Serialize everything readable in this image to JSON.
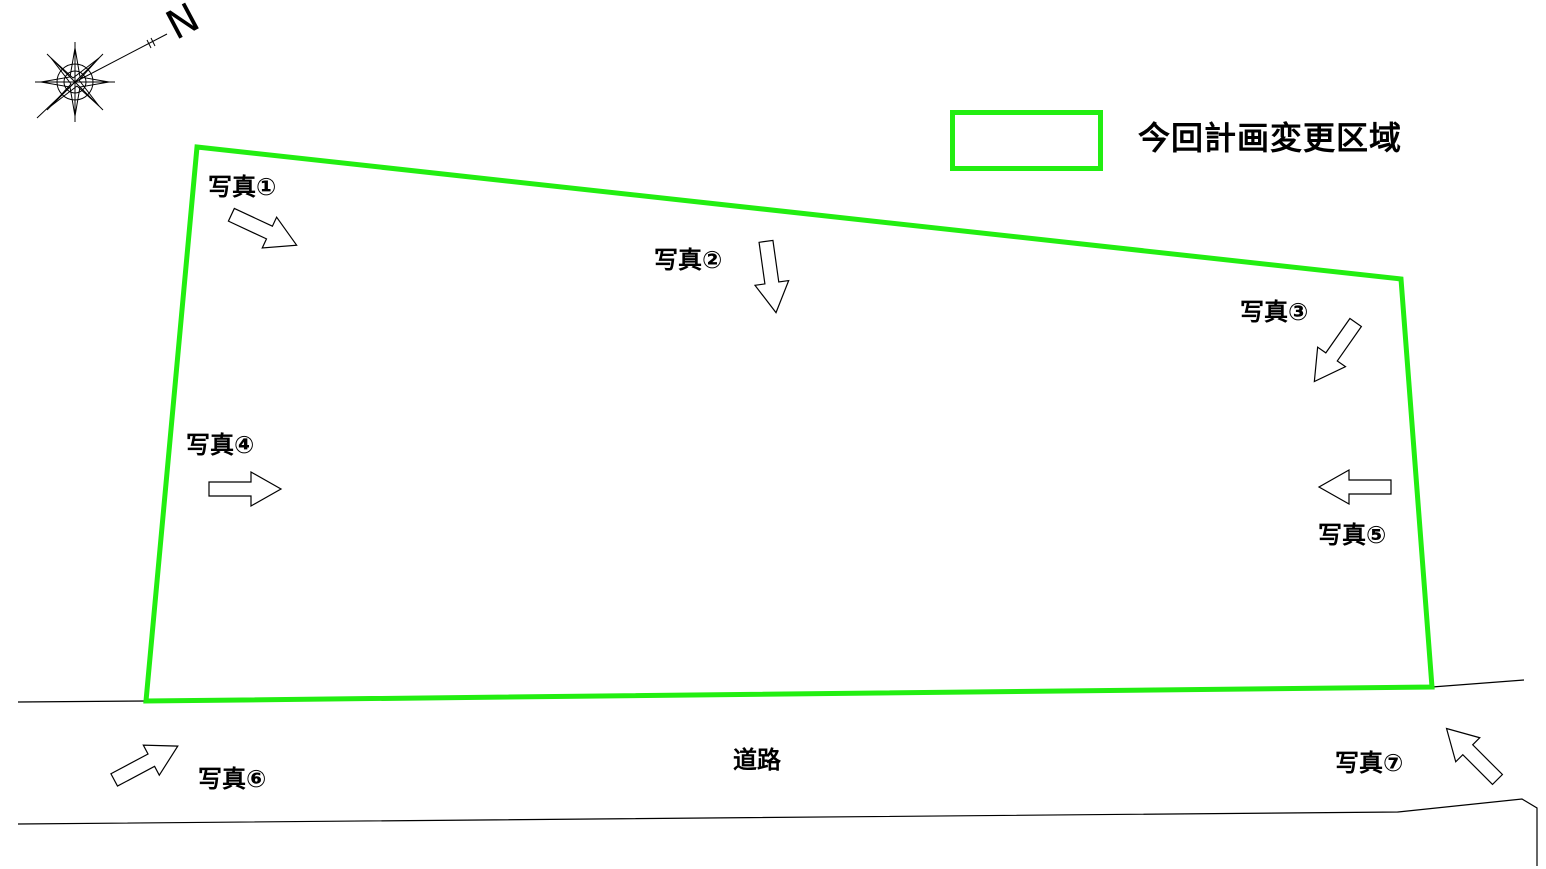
{
  "map": {
    "compass": {
      "icon": "compass-rose-icon",
      "north_label": "N"
    },
    "legend": {
      "label": "今回計画変更区域",
      "boundary_color": "#22EE11"
    },
    "road_label": "道路",
    "photo_points": [
      {
        "id": "photo-1",
        "label": "写真①",
        "icon": "outline-arrow-icon"
      },
      {
        "id": "photo-2",
        "label": "写真②",
        "icon": "outline-arrow-icon"
      },
      {
        "id": "photo-3",
        "label": "写真③",
        "icon": "outline-arrow-icon"
      },
      {
        "id": "photo-4",
        "label": "写真④",
        "icon": "outline-arrow-icon"
      },
      {
        "id": "photo-5",
        "label": "写真⑤",
        "icon": "outline-arrow-icon"
      },
      {
        "id": "photo-6",
        "label": "写真⑥",
        "icon": "outline-arrow-icon"
      },
      {
        "id": "photo-7",
        "label": "写真⑦",
        "icon": "outline-arrow-icon"
      }
    ]
  }
}
